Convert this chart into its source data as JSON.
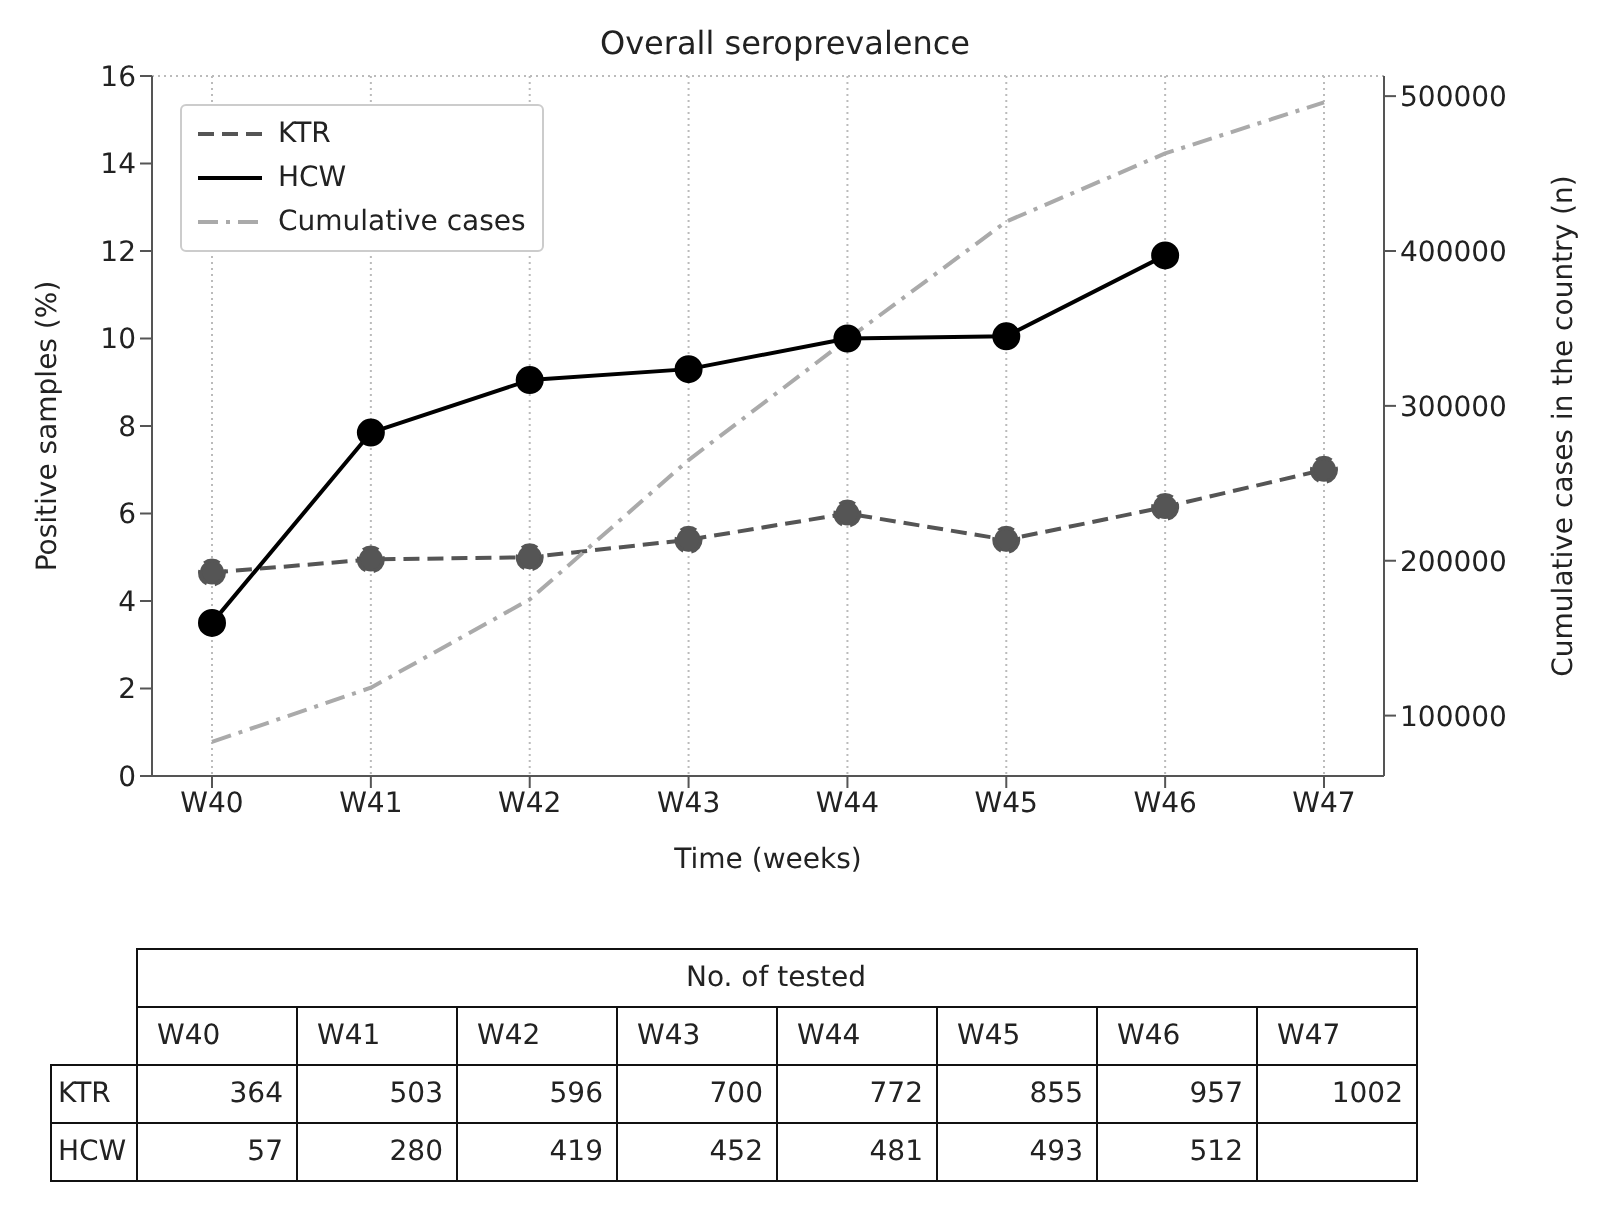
{
  "chart_data": [
    {
      "type": "line",
      "title": "Overall seroprevalence",
      "xlabel": "Time (weeks)",
      "ylabel": "Positive samples (%)",
      "y2label": "Cumulative cases in the country (n)",
      "categories": [
        "W40",
        "W41",
        "W42",
        "W43",
        "W44",
        "W45",
        "W46",
        "W47"
      ],
      "series": [
        {
          "name": "KTR",
          "color": "#555555",
          "line_style": "dashed",
          "marker": "circle",
          "values": [
            4.65,
            4.95,
            5.0,
            5.4,
            6.0,
            5.4,
            6.15,
            7.0
          ]
        },
        {
          "name": "HCW",
          "color": "#000000",
          "line_style": "solid",
          "marker": "circle",
          "values": [
            3.5,
            7.85,
            9.05,
            9.3,
            10.0,
            10.05,
            11.9,
            null
          ]
        },
        {
          "name": "Cumulative cases",
          "color": "#aaaaaa",
          "line_style": "dashdot",
          "marker": "none",
          "axis": "y2",
          "values": [
            83000,
            118000,
            175000,
            265000,
            343000,
            419000,
            463000,
            496000
          ]
        }
      ],
      "ylim": [
        0,
        16
      ],
      "yticks": [
        0,
        2,
        4,
        6,
        8,
        10,
        12,
        14,
        16
      ],
      "y2lim": [
        61000,
        513000
      ],
      "y2ticks": [
        100000,
        200000,
        300000,
        400000,
        500000
      ],
      "grid": true,
      "legend": "top left"
    },
    {
      "type": "other",
      "title": "No. of tested",
      "data_labels": true,
      "categories": [
        "W40",
        "W41",
        "W42",
        "W43",
        "W44",
        "W45",
        "W46",
        "W47"
      ],
      "series": [
        {
          "name": "KTR",
          "values": [
            364,
            503,
            596,
            700,
            772,
            855,
            957,
            1002
          ]
        },
        {
          "name": "HCW",
          "values": [
            57,
            280,
            419,
            452,
            481,
            493,
            512,
            null
          ]
        }
      ]
    }
  ]
}
